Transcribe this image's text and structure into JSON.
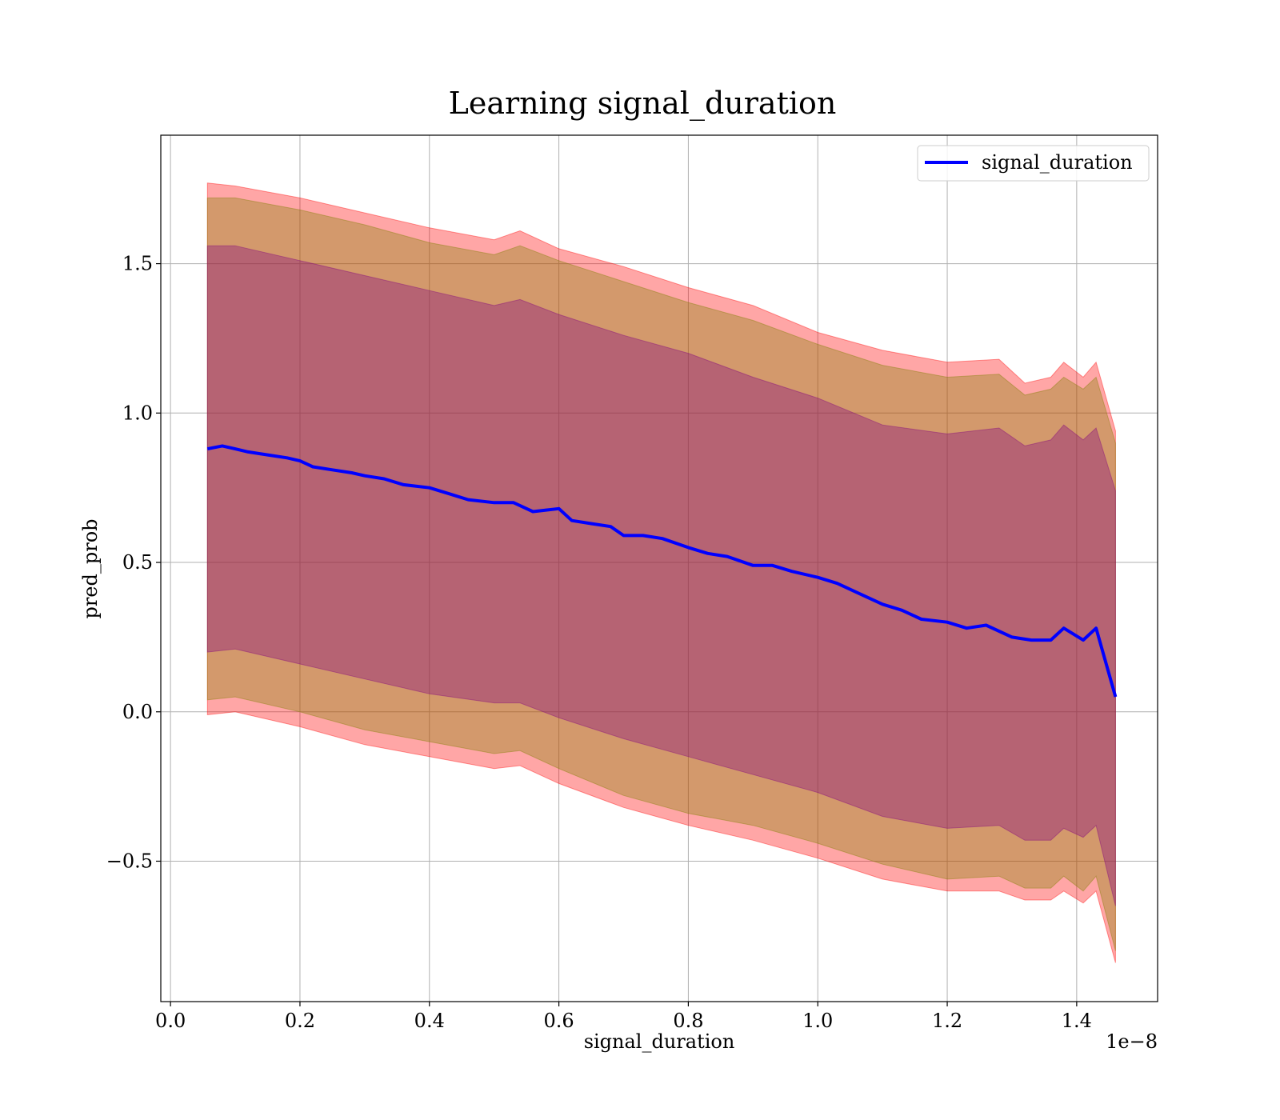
{
  "chart_data": {
    "type": "area",
    "title": "Learning signal_duration",
    "xlabel": "signal_duration",
    "ylabel": "pred_prob",
    "x_offset_text": "1e−8",
    "x_scale": 1e-08,
    "xlim": [
      -0.015,
      1.525
    ],
    "ylim": [
      -0.97,
      1.93
    ],
    "x_ticks": [
      {
        "value": 0.0,
        "label": "0.0"
      },
      {
        "value": 0.2,
        "label": "0.2"
      },
      {
        "value": 0.4,
        "label": "0.4"
      },
      {
        "value": 0.6,
        "label": "0.6"
      },
      {
        "value": 0.8,
        "label": "0.8"
      },
      {
        "value": 1.0,
        "label": "1.0"
      },
      {
        "value": 1.2,
        "label": "1.2"
      },
      {
        "value": 1.4,
        "label": "1.4"
      }
    ],
    "y_ticks": [
      {
        "value": -0.5,
        "label": "−0.5"
      },
      {
        "value": 0.0,
        "label": "0.0"
      },
      {
        "value": 0.5,
        "label": "0.5"
      },
      {
        "value": 1.0,
        "label": "1.0"
      },
      {
        "value": 1.5,
        "label": "1.5"
      }
    ],
    "grid": true,
    "legend_position": "top-right",
    "colors": {
      "line": "#0000ff",
      "band_outer": "#ff0000",
      "band_middle": "#808000",
      "band_inner": "#800080"
    },
    "series": [
      {
        "name": "signal_duration",
        "x": [
          0.057,
          0.08,
          0.1,
          0.12,
          0.15,
          0.18,
          0.2,
          0.22,
          0.25,
          0.28,
          0.3,
          0.33,
          0.36,
          0.4,
          0.43,
          0.46,
          0.5,
          0.53,
          0.56,
          0.6,
          0.62,
          0.65,
          0.68,
          0.7,
          0.73,
          0.76,
          0.8,
          0.83,
          0.86,
          0.9,
          0.93,
          0.96,
          1.0,
          1.03,
          1.06,
          1.1,
          1.13,
          1.16,
          1.2,
          1.23,
          1.26,
          1.3,
          1.33,
          1.36,
          1.38,
          1.41,
          1.43,
          1.46
        ],
        "y": [
          0.88,
          0.89,
          0.88,
          0.87,
          0.86,
          0.85,
          0.84,
          0.82,
          0.81,
          0.8,
          0.79,
          0.78,
          0.76,
          0.75,
          0.73,
          0.71,
          0.7,
          0.7,
          0.67,
          0.68,
          0.64,
          0.63,
          0.62,
          0.59,
          0.59,
          0.58,
          0.55,
          0.53,
          0.52,
          0.49,
          0.49,
          0.47,
          0.45,
          0.43,
          0.4,
          0.36,
          0.34,
          0.31,
          0.3,
          0.28,
          0.29,
          0.25,
          0.24,
          0.24,
          0.28,
          0.24,
          0.28,
          0.05
        ]
      }
    ],
    "bands": [
      {
        "x": [
          0.057,
          0.1,
          0.2,
          0.3,
          0.4,
          0.5,
          0.54,
          0.6,
          0.7,
          0.8,
          0.9,
          1.0,
          1.1,
          1.2,
          1.28,
          1.32,
          1.36,
          1.38,
          1.41,
          1.43,
          1.46
        ],
        "upper": [
          1.77,
          1.76,
          1.72,
          1.67,
          1.62,
          1.58,
          1.61,
          1.55,
          1.49,
          1.42,
          1.36,
          1.27,
          1.21,
          1.17,
          1.18,
          1.1,
          1.12,
          1.17,
          1.12,
          1.17,
          0.94
        ],
        "lower": [
          -0.01,
          0.0,
          -0.05,
          -0.11,
          -0.15,
          -0.19,
          -0.18,
          -0.24,
          -0.32,
          -0.38,
          -0.43,
          -0.49,
          -0.56,
          -0.6,
          -0.6,
          -0.63,
          -0.63,
          -0.6,
          -0.64,
          -0.6,
          -0.84
        ]
      },
      {
        "x": [
          0.057,
          0.1,
          0.2,
          0.3,
          0.4,
          0.5,
          0.54,
          0.6,
          0.7,
          0.8,
          0.9,
          1.0,
          1.1,
          1.2,
          1.28,
          1.32,
          1.36,
          1.38,
          1.41,
          1.43,
          1.46
        ],
        "upper": [
          1.72,
          1.72,
          1.68,
          1.63,
          1.57,
          1.53,
          1.56,
          1.51,
          1.44,
          1.37,
          1.31,
          1.23,
          1.16,
          1.12,
          1.13,
          1.06,
          1.08,
          1.12,
          1.08,
          1.12,
          0.9
        ],
        "lower": [
          0.04,
          0.05,
          0.0,
          -0.06,
          -0.1,
          -0.14,
          -0.13,
          -0.19,
          -0.28,
          -0.34,
          -0.38,
          -0.44,
          -0.51,
          -0.56,
          -0.55,
          -0.59,
          -0.59,
          -0.55,
          -0.6,
          -0.55,
          -0.8
        ]
      },
      {
        "x": [
          0.057,
          0.1,
          0.2,
          0.3,
          0.4,
          0.5,
          0.54,
          0.6,
          0.7,
          0.8,
          0.9,
          1.0,
          1.1,
          1.2,
          1.28,
          1.32,
          1.36,
          1.38,
          1.41,
          1.43,
          1.46
        ],
        "upper": [
          1.56,
          1.56,
          1.51,
          1.46,
          1.41,
          1.36,
          1.38,
          1.33,
          1.26,
          1.2,
          1.12,
          1.05,
          0.96,
          0.93,
          0.95,
          0.89,
          0.91,
          0.96,
          0.91,
          0.95,
          0.74
        ],
        "lower": [
          0.2,
          0.21,
          0.16,
          0.11,
          0.06,
          0.03,
          0.03,
          -0.02,
          -0.09,
          -0.15,
          -0.21,
          -0.27,
          -0.35,
          -0.39,
          -0.38,
          -0.43,
          -0.43,
          -0.39,
          -0.42,
          -0.38,
          -0.65
        ]
      }
    ]
  }
}
